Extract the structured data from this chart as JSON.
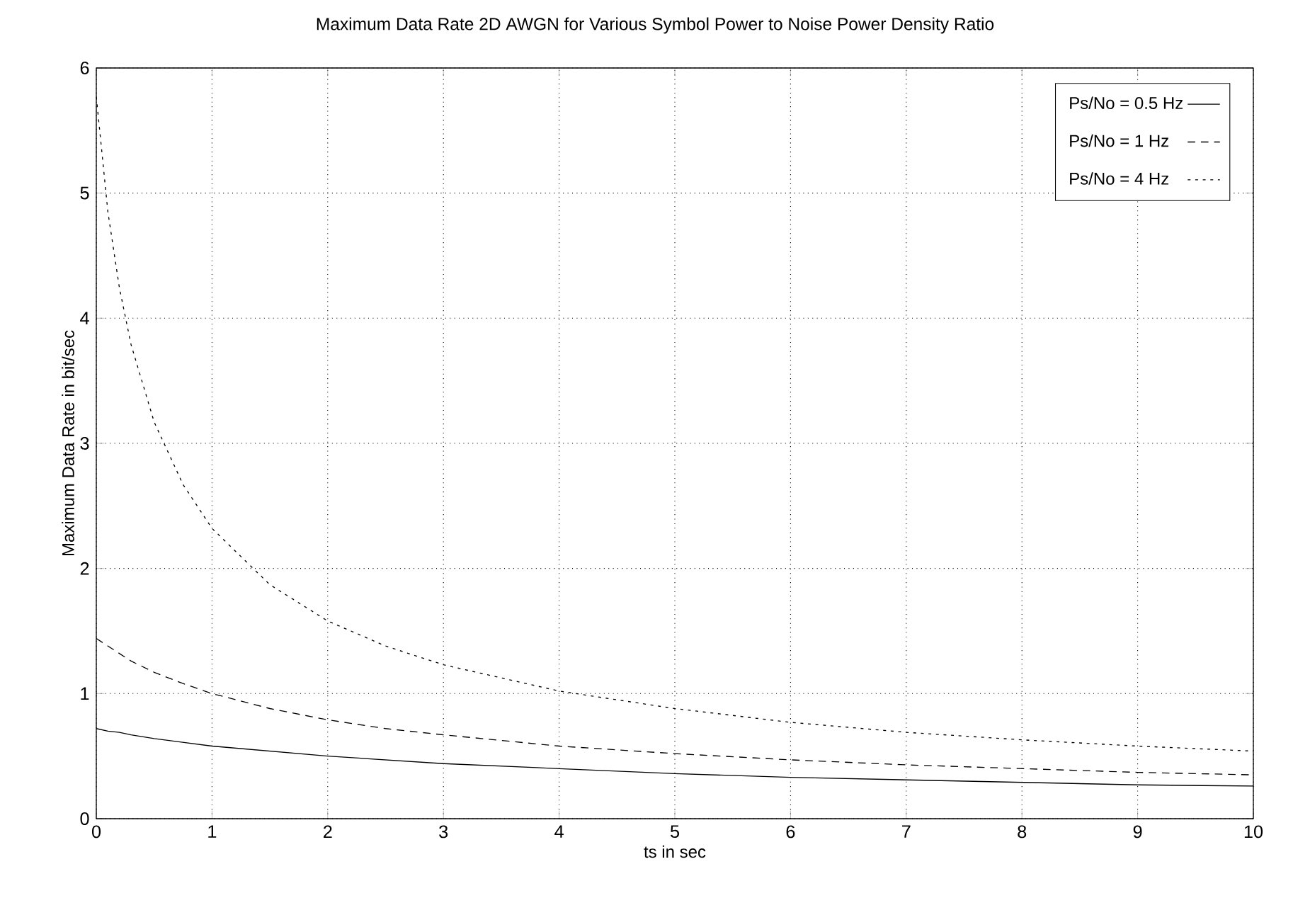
{
  "chart_data": {
    "type": "line",
    "title": "Maximum Data Rate 2D AWGN for Various Symbol Power to Noise Power Density Ratio",
    "xlabel": "ts in sec",
    "ylabel": "Maximum Data Rate in bit/sec",
    "x": [
      0,
      0.1,
      0.2,
      0.3,
      0.5,
      0.75,
      1,
      1.5,
      2,
      2.5,
      3,
      4,
      5,
      6,
      7,
      8,
      9,
      10
    ],
    "series": [
      {
        "name": "Ps/No = 0.5 Hz",
        "color": "#000000",
        "line_style": "solid",
        "values": [
          0.72,
          0.7,
          0.69,
          0.67,
          0.64,
          0.61,
          0.58,
          0.54,
          0.5,
          0.47,
          0.44,
          0.4,
          0.36,
          0.33,
          0.31,
          0.29,
          0.27,
          0.26
        ]
      },
      {
        "name": "Ps/No = 1 Hz",
        "color": "#000000",
        "line_style": "dashed",
        "values": [
          1.44,
          1.38,
          1.32,
          1.26,
          1.17,
          1.08,
          1.0,
          0.88,
          0.79,
          0.72,
          0.67,
          0.58,
          0.52,
          0.47,
          0.43,
          0.4,
          0.37,
          0.35
        ]
      },
      {
        "name": "Ps/No = 4 Hz",
        "color": "#000000",
        "line_style": "dotted",
        "values": [
          5.77,
          4.85,
          4.24,
          3.79,
          3.17,
          2.67,
          2.32,
          1.87,
          1.58,
          1.38,
          1.23,
          1.02,
          0.88,
          0.77,
          0.69,
          0.63,
          0.58,
          0.54
        ]
      }
    ],
    "xlim": [
      0,
      10
    ],
    "ylim": [
      0,
      6
    ],
    "xticks": [
      0,
      1,
      2,
      3,
      4,
      5,
      6,
      7,
      8,
      9,
      10
    ],
    "yticks": [
      0,
      1,
      2,
      3,
      4,
      5,
      6
    ],
    "grid": true,
    "legend": "top right",
    "marker": "none"
  }
}
